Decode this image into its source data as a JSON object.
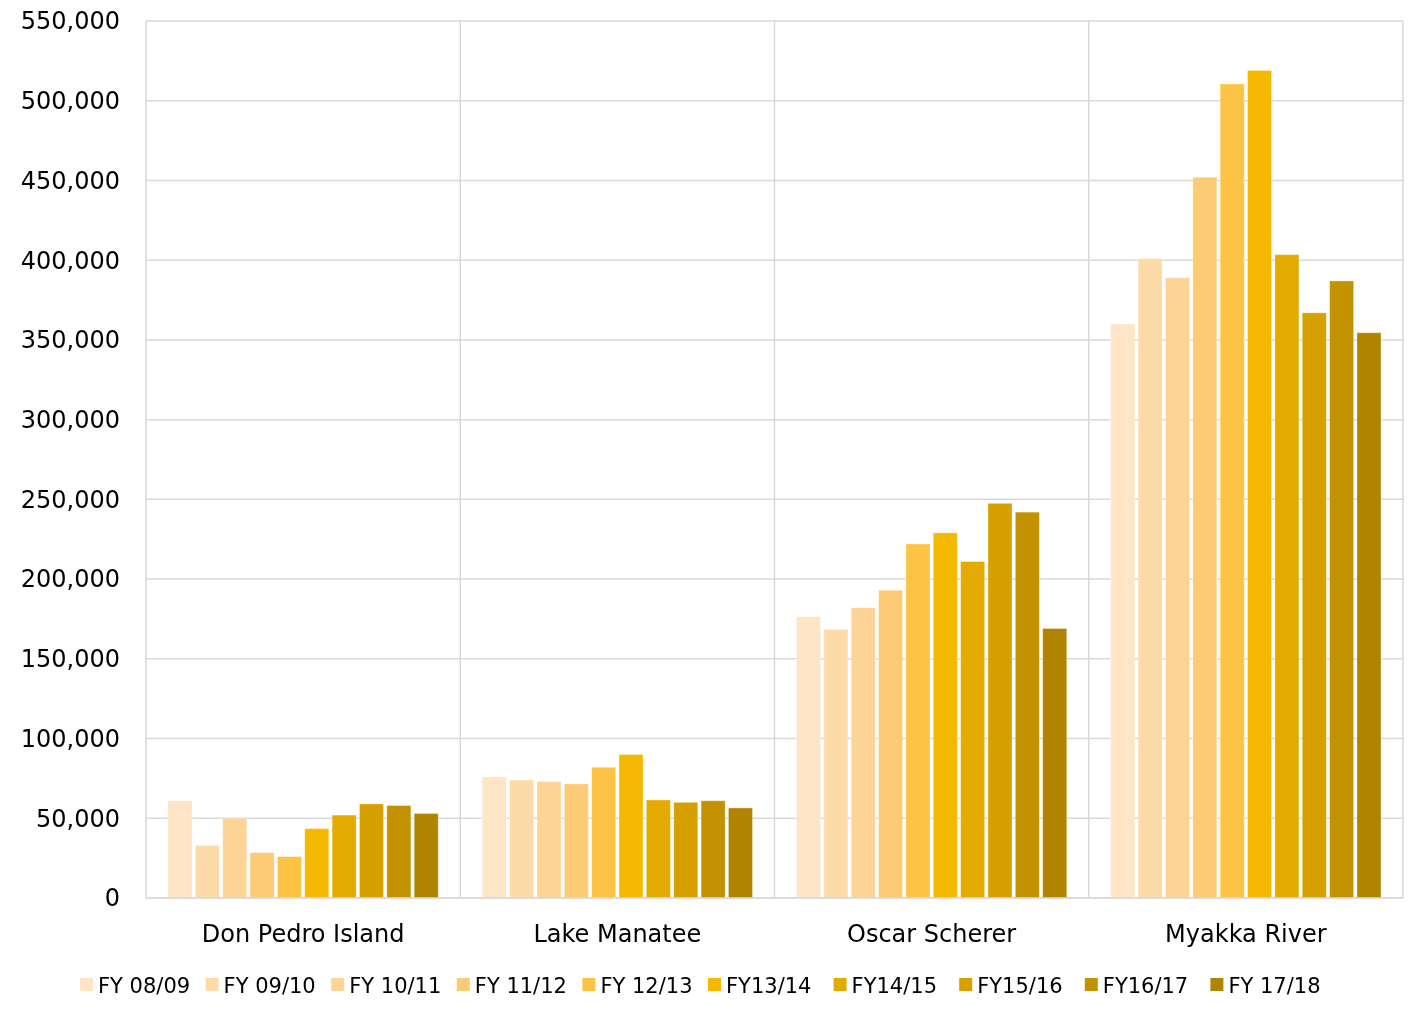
{
  "chart_data": {
    "type": "bar",
    "categories": [
      "Don Pedro Island",
      "Lake Manatee",
      "Oscar Scherer",
      "Myakka River"
    ],
    "series": [
      {
        "name": "FY 08/09",
        "color": "#fde5c5",
        "values": [
          61000,
          76000,
          176500,
          360000
        ]
      },
      {
        "name": "FY 09/10",
        "color": "#fddba8",
        "values": [
          33000,
          74000,
          168500,
          401000
        ]
      },
      {
        "name": "FY 10/11",
        "color": "#fdd396",
        "values": [
          50000,
          73000,
          182000,
          389000
        ]
      },
      {
        "name": "FY 11/12",
        "color": "#fdcb75",
        "values": [
          28500,
          71500,
          193000,
          452000
        ]
      },
      {
        "name": "FY 12/13",
        "color": "#fdc344",
        "values": [
          26000,
          82000,
          222000,
          510500
        ]
      },
      {
        "name": "FY13/14",
        "color": "#f5b800",
        "values": [
          43500,
          90000,
          229000,
          519000
        ]
      },
      {
        "name": "FY14/15",
        "color": "#e3ab00",
        "values": [
          52000,
          61500,
          211000,
          403500
        ]
      },
      {
        "name": "FY15/16",
        "color": "#d5a000",
        "values": [
          59000,
          60000,
          247500,
          367000
        ]
      },
      {
        "name": "FY16/17",
        "color": "#c39200",
        "values": [
          58000,
          61000,
          242000,
          387000
        ]
      },
      {
        "name": "FY 17/18",
        "color": "#b08400",
        "values": [
          53000,
          56500,
          169000,
          354500
        ]
      }
    ],
    "ylim": [
      0,
      550000
    ],
    "yticks": [
      0,
      {
        "value": 50000,
        "label": "50,000"
      },
      {
        "value": 100000,
        "label": "100,000"
      },
      {
        "value": 150000,
        "label": "150,000"
      },
      {
        "value": 200000,
        "label": "200,000"
      },
      {
        "value": 250000,
        "label": "250,000"
      },
      {
        "value": 300000,
        "label": "300,000"
      },
      {
        "value": 350000,
        "label": "350,000"
      },
      {
        "value": 400000,
        "label": "400,000"
      },
      {
        "value": 450000,
        "label": "450,000"
      },
      {
        "value": 500000,
        "label": "500,000"
      },
      {
        "value": 550000,
        "label": "550,000"
      }
    ],
    "grid": true,
    "legend": "bottom"
  }
}
